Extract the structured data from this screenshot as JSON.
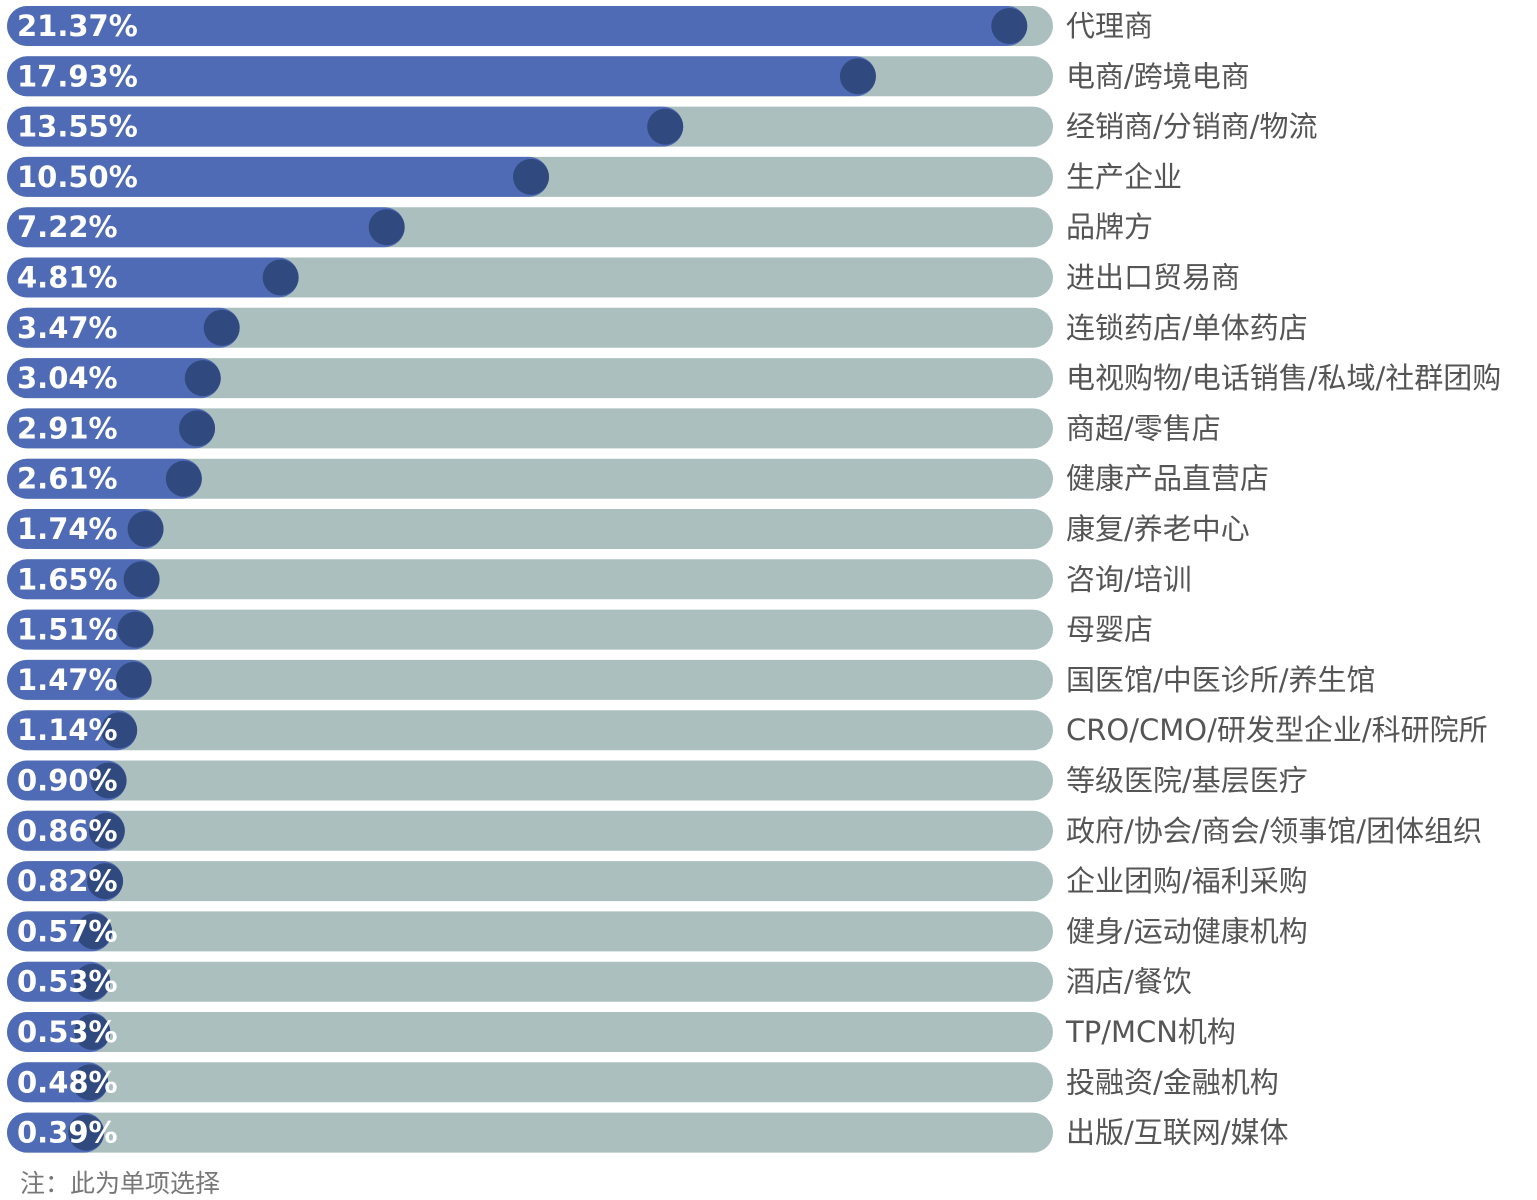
{
  "chart_data": {
    "type": "bar",
    "orientation": "horizontal",
    "categories": [
      "代理商",
      "电商/跨境电商",
      "经销商/分销商/物流",
      "生产企业",
      "品牌方",
      "进出口贸易商",
      "连锁药店/单体药店",
      "电视购物/电话销售/私域/社群团购",
      "商超/零售店",
      "健康产品直营店",
      "康复/养老中心",
      "咨询/培训",
      "母婴店",
      "国医馆/中医诊所/养生馆",
      "CRO/CMO/研发型企业/科研院所",
      "等级医院/基层医疗",
      "政府/协会/商会/领事馆/团体组织",
      "企业团购/福利采购",
      "健身/运动健康机构",
      "酒店/餐饮",
      "TP/MCN机构",
      "投融资/金融机构",
      "出版/互联网/媒体"
    ],
    "values": [
      21.37,
      17.93,
      13.55,
      10.5,
      7.22,
      4.81,
      3.47,
      3.04,
      2.91,
      2.61,
      1.74,
      1.65,
      1.51,
      1.47,
      1.14,
      0.9,
      0.86,
      0.82,
      0.57,
      0.53,
      0.53,
      0.48,
      0.39
    ],
    "value_labels": [
      "21.37%",
      "17.93%",
      "13.55%",
      "10.50%",
      "7.22%",
      "4.81%",
      "3.47%",
      "3.04%",
      "2.91%",
      "2.61%",
      "1.74%",
      "1.65%",
      "1.51%",
      "1.47%",
      "1.14%",
      "0.90%",
      "0.86%",
      "0.82%",
      "0.57%",
      "0.53%",
      "0.53%",
      "0.48%",
      "0.39%"
    ],
    "unit": "%",
    "note": "注：此为单项选择",
    "colors": {
      "bar": "#506bb5",
      "marker": "#30497f",
      "track": "#abbfbf",
      "value_text": "#ffffff",
      "label_text": "#555555"
    }
  }
}
